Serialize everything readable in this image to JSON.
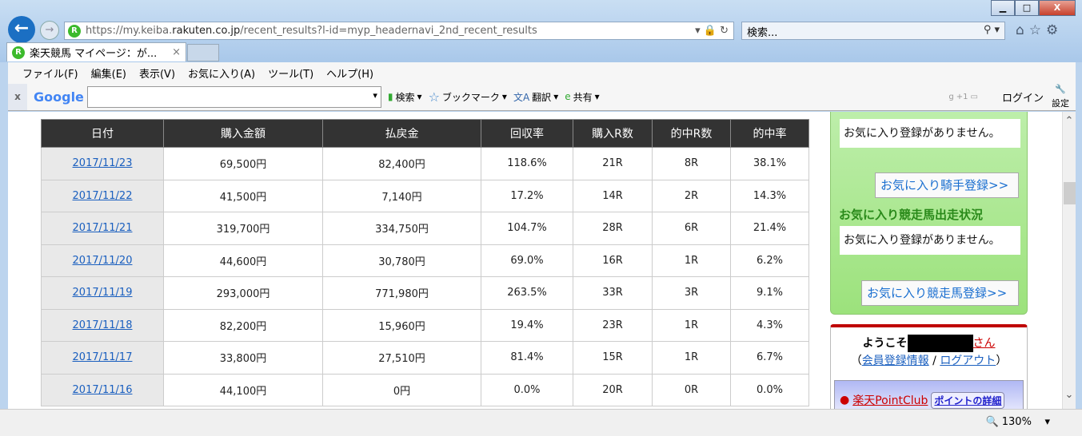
{
  "browser": {
    "url_prefix": "https://my.keiba.",
    "url_host": "rakuten.co.jp",
    "url_path": "/recent_results?l-id=myp_headernavi_2nd_recent_results",
    "search_placeholder": "検索...",
    "tab_title": "楽天競馬 マイページ：が...",
    "menu": [
      "ファイル(F)",
      "編集(E)",
      "表示(V)",
      "お気に入り(A)",
      "ツール(T)",
      "ヘルプ(H)"
    ],
    "google_toolbar": {
      "logo": "Google",
      "search": "検索",
      "bookmark": "ブックマーク",
      "translate": "翻訳",
      "share": "共有",
      "gplus": "+1",
      "login": "ログイン",
      "settings": "設定"
    },
    "zoom": "130%"
  },
  "table": {
    "headers": [
      "日付",
      "購入金額",
      "払戻金",
      "回収率",
      "購入R数",
      "的中R数",
      "的中率"
    ],
    "rows": [
      [
        "2017/11/23",
        "69,500円",
        "82,400円",
        "118.6%",
        "21R",
        "8R",
        "38.1%"
      ],
      [
        "2017/11/22",
        "41,500円",
        "7,140円",
        "17.2%",
        "14R",
        "2R",
        "14.3%"
      ],
      [
        "2017/11/21",
        "319,700円",
        "334,750円",
        "104.7%",
        "28R",
        "6R",
        "21.4%"
      ],
      [
        "2017/11/20",
        "44,600円",
        "30,780円",
        "69.0%",
        "16R",
        "1R",
        "6.2%"
      ],
      [
        "2017/11/19",
        "293,000円",
        "771,980円",
        "263.5%",
        "33R",
        "3R",
        "9.1%"
      ],
      [
        "2017/11/18",
        "82,200円",
        "15,960円",
        "19.4%",
        "23R",
        "1R",
        "4.3%"
      ],
      [
        "2017/11/17",
        "33,800円",
        "27,510円",
        "81.4%",
        "15R",
        "1R",
        "6.7%"
      ],
      [
        "2017/11/16",
        "44,100円",
        "0円",
        "0.0%",
        "20R",
        "0R",
        "0.0%"
      ]
    ]
  },
  "sidebar": {
    "no_fav_1": "お気に入り登録がありません。",
    "jockey_btn": "お気に入り騎手登録>>",
    "horse_heading": "お気に入り競走馬出走状況",
    "no_fav_2": "お気に入り登録がありません。",
    "horse_btn": "お気に入り競走馬登録>>",
    "welcome": "ようこそ",
    "san": "さん",
    "member_info": "会員登録情報",
    "logout": "ログアウト",
    "pointclub": "楽天PointClub",
    "point_detail": "ポイントの詳細"
  }
}
